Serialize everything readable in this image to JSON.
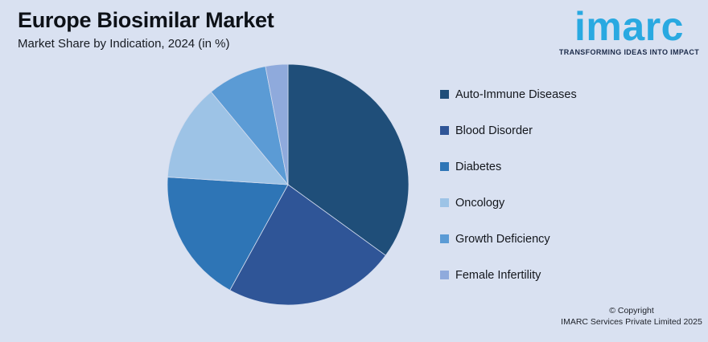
{
  "header": {
    "title": "Europe Biosimilar Market",
    "subtitle": "Market Share by Indication, 2024 (in %)"
  },
  "branding": {
    "logo_text": "imarc",
    "tagline": "TRANSFORMING IDEAS INTO IMPACT",
    "logo_color": "#29A9E1",
    "tagline_color": "#1C2B4A"
  },
  "footer": {
    "copyright_line1": "© Copyright",
    "copyright_line2": "IMARC Services Private Limited 2025"
  },
  "colors": {
    "background": "#D9E1F1",
    "title_text": "#0D1117"
  },
  "chart_data": {
    "type": "pie",
    "title": "Europe Biosimilar Market",
    "subtitle": "Market Share by Indication, 2024 (in %)",
    "categories": [
      "Auto-Immune Diseases",
      "Blood Disorder",
      "Diabetes",
      "Oncology",
      "Growth Deficiency",
      "Female Infertility"
    ],
    "values": [
      35,
      23,
      18,
      13,
      8,
      3
    ],
    "colors": [
      "#1F4E79",
      "#2F5597",
      "#2E75B6",
      "#9DC3E6",
      "#5B9BD5",
      "#8FAADC"
    ],
    "start_angle_deg": 0,
    "direction": "clockwise",
    "legend_position": "right",
    "data_labels": false
  }
}
